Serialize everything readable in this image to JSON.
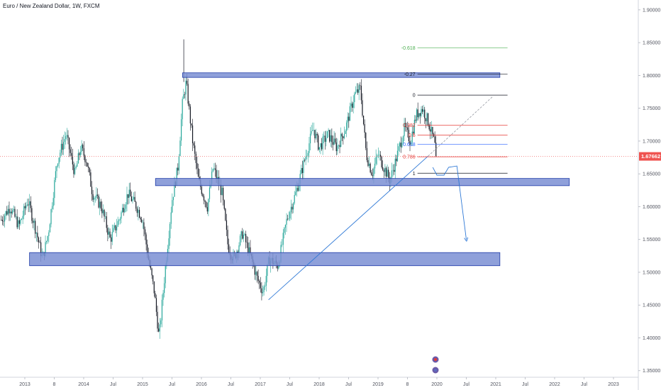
{
  "header": {
    "title": "Euro / New Zealand Dollar, 1W, FXCM"
  },
  "colors": {
    "up": "#26a69a",
    "down": "#131722",
    "zone_fill": "#7b8fd4",
    "zone_stroke": "#1f3ba8",
    "trend": "#2f79d6",
    "price_tag": "#ef5350",
    "fib_neg": "#4caf50",
    "fib_red": "#e53935",
    "fib_blue": "#2962ff",
    "fib_black": "#131722"
  },
  "chart_data": {
    "type": "candlestick",
    "symbol": "EURNZD",
    "ylim": [
      1.34,
      1.915
    ],
    "y_ticks": [
      "1.35000",
      "1.40000",
      "1.45000",
      "1.50000",
      "1.55000",
      "1.60000",
      "1.65000",
      "1.70000",
      "1.75000",
      "1.80000",
      "1.85000",
      "1.90000"
    ],
    "x_labels": [
      {
        "t": 2013.0,
        "label": "2013"
      },
      {
        "t": 2013.5,
        "label": "8"
      },
      {
        "t": 2014.0,
        "label": "2014"
      },
      {
        "t": 2014.5,
        "label": "Jul"
      },
      {
        "t": 2015.0,
        "label": "2015"
      },
      {
        "t": 2015.5,
        "label": "Jul"
      },
      {
        "t": 2016.0,
        "label": "2016"
      },
      {
        "t": 2016.5,
        "label": "Jul"
      },
      {
        "t": 2017.0,
        "label": "2017"
      },
      {
        "t": 2017.5,
        "label": "Jul"
      },
      {
        "t": 2018.0,
        "label": "2018"
      },
      {
        "t": 2018.5,
        "label": "Jul"
      },
      {
        "t": 2019.0,
        "label": "2019"
      },
      {
        "t": 2019.5,
        "label": "8"
      },
      {
        "t": 2020.0,
        "label": "2020"
      },
      {
        "t": 2020.5,
        "label": "Jul"
      },
      {
        "t": 2021.0,
        "label": "2021"
      },
      {
        "t": 2021.5,
        "label": "Jul"
      },
      {
        "t": 2022.0,
        "label": "2022"
      },
      {
        "t": 2022.5,
        "label": "Jul"
      },
      {
        "t": 2023.0,
        "label": "2023"
      }
    ],
    "last_price": "1.67662",
    "last_price_value": 1.67662,
    "price_path": [
      [
        2012.6,
        1.58
      ],
      [
        2012.75,
        1.6
      ],
      [
        2012.9,
        1.57
      ],
      [
        2013.05,
        1.61
      ],
      [
        2013.2,
        1.56
      ],
      [
        2013.3,
        1.52
      ],
      [
        2013.4,
        1.56
      ],
      [
        2013.55,
        1.67
      ],
      [
        2013.7,
        1.71
      ],
      [
        2013.85,
        1.65
      ],
      [
        2013.95,
        1.69
      ],
      [
        2014.05,
        1.67
      ],
      [
        2014.15,
        1.62
      ],
      [
        2014.3,
        1.6
      ],
      [
        2014.45,
        1.55
      ],
      [
        2014.6,
        1.58
      ],
      [
        2014.75,
        1.62
      ],
      [
        2014.9,
        1.6
      ],
      [
        2015.0,
        1.58
      ],
      [
        2015.1,
        1.52
      ],
      [
        2015.2,
        1.47
      ],
      [
        2015.28,
        1.4
      ],
      [
        2015.38,
        1.5
      ],
      [
        2015.5,
        1.61
      ],
      [
        2015.6,
        1.66
      ],
      [
        2015.68,
        1.76
      ],
      [
        2015.74,
        1.79
      ],
      [
        2015.85,
        1.7
      ],
      [
        2015.95,
        1.64
      ],
      [
        2016.1,
        1.6
      ],
      [
        2016.2,
        1.66
      ],
      [
        2016.35,
        1.62
      ],
      [
        2016.45,
        1.54
      ],
      [
        2016.55,
        1.52
      ],
      [
        2016.7,
        1.56
      ],
      [
        2016.85,
        1.52
      ],
      [
        2016.95,
        1.49
      ],
      [
        2017.05,
        1.47
      ],
      [
        2017.15,
        1.52
      ],
      [
        2017.3,
        1.51
      ],
      [
        2017.45,
        1.58
      ],
      [
        2017.6,
        1.62
      ],
      [
        2017.75,
        1.67
      ],
      [
        2017.9,
        1.72
      ],
      [
        2018.0,
        1.69
      ],
      [
        2018.15,
        1.71
      ],
      [
        2018.3,
        1.69
      ],
      [
        2018.45,
        1.72
      ],
      [
        2018.6,
        1.77
      ],
      [
        2018.7,
        1.78
      ],
      [
        2018.8,
        1.68
      ],
      [
        2018.9,
        1.65
      ],
      [
        2019.0,
        1.68
      ],
      [
        2019.1,
        1.66
      ],
      [
        2019.2,
        1.64
      ],
      [
        2019.3,
        1.67
      ],
      [
        2019.45,
        1.72
      ],
      [
        2019.55,
        1.7
      ],
      [
        2019.65,
        1.74
      ],
      [
        2019.75,
        1.75
      ],
      [
        2019.85,
        1.73
      ],
      [
        2019.95,
        1.7
      ],
      [
        2020.0,
        1.6766
      ]
    ],
    "overlays": {
      "zones": [
        {
          "t0": 2015.68,
          "t1": 2021.07,
          "p_top": 1.804,
          "p_bottom": 1.797
        },
        {
          "t0": 2015.22,
          "t1": 2022.25,
          "p_top": 1.643,
          "p_bottom": 1.632
        },
        {
          "t0": 2013.08,
          "t1": 2021.07,
          "p_top": 1.53,
          "p_bottom": 1.51
        }
      ],
      "trend_line": {
        "t0": 2017.14,
        "p0": 1.458,
        "t1": 2019.85,
        "p1": 1.677
      },
      "trend_extension": {
        "t0": 2019.85,
        "p0": 1.677,
        "t1": 2020.95,
        "p1": 1.768
      },
      "projection": [
        [
          2019.93,
          1.66
        ],
        [
          2020.0,
          1.648
        ],
        [
          2020.12,
          1.648
        ],
        [
          2020.2,
          1.66
        ],
        [
          2020.34,
          1.662
        ],
        [
          2020.5,
          1.55
        ]
      ],
      "fib_t0": 2019.55,
      "fib_t1": 2021.2,
      "fib_levels": [
        {
          "label": "-0.618",
          "price": 1.842,
          "color": "#4caf50"
        },
        {
          "label": "-0.27",
          "price": 1.802,
          "color": "#131722"
        },
        {
          "label": "0",
          "price": 1.77,
          "color": "#131722"
        },
        {
          "label": "0.382",
          "price": 1.724,
          "color": "#e53935"
        },
        {
          "label": "0.5",
          "price": 1.709,
          "color": "#e53935"
        },
        {
          "label": "0.618",
          "price": 1.695,
          "color": "#2962ff"
        },
        {
          "label": "0.786",
          "price": 1.676,
          "color": "#e53935"
        },
        {
          "label": "1",
          "price": 1.651,
          "color": "#131722"
        }
      ]
    }
  }
}
